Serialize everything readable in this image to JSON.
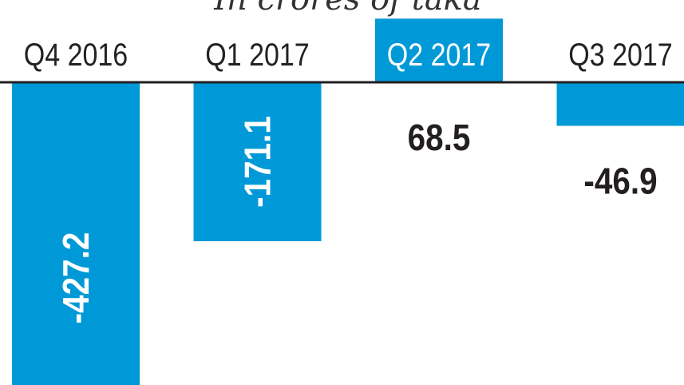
{
  "chart_data": {
    "type": "bar",
    "subtitle": "In crores of taka",
    "categories": [
      "Q4 2016",
      "Q1 2017",
      "Q2 2017",
      "Q3 2017"
    ],
    "values": [
      -427.2,
      -171.1,
      68.5,
      -46.9
    ],
    "value_labels": [
      "-427.2",
      "-171.1",
      "68.5",
      "-46.9"
    ],
    "highlighted_category": "Q2 2017",
    "bar_color": "#0099d8",
    "grid": false,
    "legend": "none"
  }
}
